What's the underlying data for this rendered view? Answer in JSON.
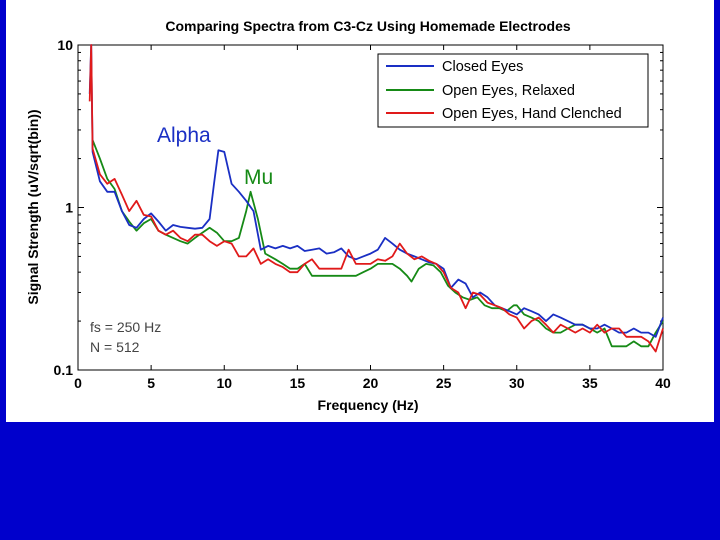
{
  "colors": {
    "slide_bg": "#0000cc",
    "panel_bg": "#ffffff",
    "closed_eyes": "#1a2fc4",
    "open_relaxed": "#168a16",
    "open_clenched": "#e01a1a"
  },
  "chart_data": {
    "type": "line",
    "title": "Comparing Spectra from C3-Cz Using Homemade Electrodes",
    "xlabel": "Frequency (Hz)",
    "ylabel": "Signal Strength (uV/sqrt(bin))",
    "xlim": [
      0,
      40
    ],
    "ylim": [
      0.1,
      10
    ],
    "yscale": "log",
    "grid": false,
    "legend_position": "top-right",
    "x_ticks": [
      {
        "v": 0,
        "label": "0"
      },
      {
        "v": 5,
        "label": "5"
      },
      {
        "v": 10,
        "label": "10"
      },
      {
        "v": 15,
        "label": "15"
      },
      {
        "v": 20,
        "label": "20"
      },
      {
        "v": 25,
        "label": "25"
      },
      {
        "v": 30,
        "label": "30"
      },
      {
        "v": 35,
        "label": "35"
      },
      {
        "v": 40,
        "label": "40"
      }
    ],
    "y_ticks": [
      {
        "v": 0.1,
        "label": "0.1"
      },
      {
        "v": 1,
        "label": "1"
      },
      {
        "v": 10,
        "label": "10"
      }
    ],
    "series": [
      {
        "name": "Closed Eyes",
        "color": "#1a2fc4",
        "points": [
          [
            0.8,
            5.0
          ],
          [
            0.9,
            10.0
          ],
          [
            1.0,
            2.2
          ],
          [
            1.5,
            1.45
          ],
          [
            2.0,
            1.25
          ],
          [
            2.5,
            1.25
          ],
          [
            3.0,
            0.95
          ],
          [
            3.5,
            0.78
          ],
          [
            4.0,
            0.75
          ],
          [
            4.5,
            0.85
          ],
          [
            5.0,
            0.92
          ],
          [
            5.5,
            0.82
          ],
          [
            6.0,
            0.72
          ],
          [
            6.5,
            0.78
          ],
          [
            7.0,
            0.76
          ],
          [
            7.5,
            0.75
          ],
          [
            8.0,
            0.74
          ],
          [
            8.5,
            0.75
          ],
          [
            9.0,
            0.85
          ],
          [
            9.3,
            1.4
          ],
          [
            9.6,
            2.25
          ],
          [
            10.0,
            2.2
          ],
          [
            10.5,
            1.4
          ],
          [
            11.0,
            1.25
          ],
          [
            11.5,
            1.1
          ],
          [
            12.0,
            0.95
          ],
          [
            12.5,
            0.55
          ],
          [
            13.0,
            0.58
          ],
          [
            13.5,
            0.56
          ],
          [
            14.0,
            0.58
          ],
          [
            14.5,
            0.56
          ],
          [
            15.0,
            0.58
          ],
          [
            15.5,
            0.54
          ],
          [
            16.0,
            0.55
          ],
          [
            16.5,
            0.56
          ],
          [
            17.0,
            0.52
          ],
          [
            17.5,
            0.53
          ],
          [
            18.0,
            0.56
          ],
          [
            18.5,
            0.5
          ],
          [
            19.0,
            0.48
          ],
          [
            19.5,
            0.5
          ],
          [
            20.0,
            0.52
          ],
          [
            20.5,
            0.55
          ],
          [
            21.0,
            0.65
          ],
          [
            21.5,
            0.6
          ],
          [
            22.0,
            0.55
          ],
          [
            22.5,
            0.52
          ],
          [
            23.0,
            0.5
          ],
          [
            23.5,
            0.48
          ],
          [
            24.0,
            0.46
          ],
          [
            24.5,
            0.45
          ],
          [
            25.0,
            0.42
          ],
          [
            25.5,
            0.32
          ],
          [
            26.0,
            0.36
          ],
          [
            26.5,
            0.34
          ],
          [
            27.0,
            0.28
          ],
          [
            27.5,
            0.3
          ],
          [
            28.0,
            0.28
          ],
          [
            28.5,
            0.25
          ],
          [
            29.0,
            0.24
          ],
          [
            29.5,
            0.23
          ],
          [
            30.0,
            0.22
          ],
          [
            30.5,
            0.24
          ],
          [
            31.0,
            0.23
          ],
          [
            31.5,
            0.22
          ],
          [
            32.0,
            0.2
          ],
          [
            32.5,
            0.22
          ],
          [
            33.0,
            0.21
          ],
          [
            33.5,
            0.2
          ],
          [
            34.0,
            0.19
          ],
          [
            34.5,
            0.19
          ],
          [
            35.0,
            0.18
          ],
          [
            35.5,
            0.18
          ],
          [
            36.0,
            0.19
          ],
          [
            36.5,
            0.18
          ],
          [
            37.0,
            0.17
          ],
          [
            37.5,
            0.17
          ],
          [
            38.0,
            0.18
          ],
          [
            38.5,
            0.17
          ],
          [
            39.0,
            0.17
          ],
          [
            39.5,
            0.16
          ],
          [
            40.0,
            0.21
          ]
        ]
      },
      {
        "name": "Open Eyes, Relaxed",
        "color": "#168a16",
        "points": [
          [
            1.0,
            2.6
          ],
          [
            1.5,
            2.0
          ],
          [
            2.0,
            1.5
          ],
          [
            2.5,
            1.3
          ],
          [
            3.0,
            0.95
          ],
          [
            3.5,
            0.82
          ],
          [
            4.0,
            0.72
          ],
          [
            4.5,
            0.8
          ],
          [
            5.0,
            0.85
          ],
          [
            5.5,
            0.72
          ],
          [
            6.0,
            0.68
          ],
          [
            6.5,
            0.65
          ],
          [
            7.0,
            0.62
          ],
          [
            7.5,
            0.6
          ],
          [
            8.0,
            0.65
          ],
          [
            8.5,
            0.7
          ],
          [
            9.0,
            0.75
          ],
          [
            9.5,
            0.7
          ],
          [
            10.0,
            0.62
          ],
          [
            10.5,
            0.62
          ],
          [
            11.0,
            0.65
          ],
          [
            11.5,
            0.95
          ],
          [
            11.8,
            1.25
          ],
          [
            12.3,
            0.85
          ],
          [
            12.8,
            0.52
          ],
          [
            13.5,
            0.48
          ],
          [
            14.0,
            0.45
          ],
          [
            14.5,
            0.42
          ],
          [
            15.0,
            0.42
          ],
          [
            15.5,
            0.45
          ],
          [
            16.0,
            0.38
          ],
          [
            16.5,
            0.38
          ],
          [
            17.0,
            0.38
          ],
          [
            17.5,
            0.38
          ],
          [
            18.0,
            0.38
          ],
          [
            18.5,
            0.38
          ],
          [
            19.0,
            0.38
          ],
          [
            19.5,
            0.4
          ],
          [
            20.0,
            0.42
          ],
          [
            20.5,
            0.45
          ],
          [
            21.0,
            0.45
          ],
          [
            21.5,
            0.45
          ],
          [
            22.0,
            0.42
          ],
          [
            22.5,
            0.38
          ],
          [
            22.8,
            0.35
          ],
          [
            23.3,
            0.42
          ],
          [
            23.8,
            0.45
          ],
          [
            24.3,
            0.44
          ],
          [
            24.8,
            0.4
          ],
          [
            25.3,
            0.33
          ],
          [
            25.8,
            0.3
          ],
          [
            26.3,
            0.28
          ],
          [
            26.8,
            0.27
          ],
          [
            27.3,
            0.28
          ],
          [
            27.8,
            0.25
          ],
          [
            28.3,
            0.24
          ],
          [
            28.8,
            0.24
          ],
          [
            29.3,
            0.23
          ],
          [
            29.8,
            0.25
          ],
          [
            30.0,
            0.25
          ],
          [
            30.5,
            0.22
          ],
          [
            31.0,
            0.21
          ],
          [
            31.5,
            0.2
          ],
          [
            32.0,
            0.18
          ],
          [
            32.5,
            0.17
          ],
          [
            33.0,
            0.17
          ],
          [
            33.5,
            0.18
          ],
          [
            34.0,
            0.19
          ],
          [
            34.5,
            0.19
          ],
          [
            35.0,
            0.18
          ],
          [
            35.5,
            0.17
          ],
          [
            36.0,
            0.18
          ],
          [
            36.5,
            0.14
          ],
          [
            37.0,
            0.14
          ],
          [
            37.5,
            0.14
          ],
          [
            38.0,
            0.15
          ],
          [
            38.5,
            0.14
          ],
          [
            39.0,
            0.14
          ],
          [
            39.5,
            0.17
          ],
          [
            40.0,
            0.2
          ]
        ]
      },
      {
        "name": "Open Eyes, Hand Clenched",
        "color": "#e01a1a",
        "points": [
          [
            0.8,
            4.5
          ],
          [
            0.9,
            10.0
          ],
          [
            1.0,
            2.3
          ],
          [
            1.5,
            1.6
          ],
          [
            2.0,
            1.4
          ],
          [
            2.5,
            1.5
          ],
          [
            3.0,
            1.2
          ],
          [
            3.5,
            0.95
          ],
          [
            4.0,
            1.1
          ],
          [
            4.5,
            0.9
          ],
          [
            5.0,
            0.88
          ],
          [
            5.5,
            0.72
          ],
          [
            6.0,
            0.68
          ],
          [
            6.5,
            0.72
          ],
          [
            7.0,
            0.65
          ],
          [
            7.5,
            0.62
          ],
          [
            8.0,
            0.68
          ],
          [
            8.5,
            0.68
          ],
          [
            9.0,
            0.62
          ],
          [
            9.5,
            0.58
          ],
          [
            10.0,
            0.62
          ],
          [
            10.5,
            0.6
          ],
          [
            11.0,
            0.5
          ],
          [
            11.5,
            0.5
          ],
          [
            12.0,
            0.56
          ],
          [
            12.5,
            0.45
          ],
          [
            13.0,
            0.48
          ],
          [
            13.5,
            0.45
          ],
          [
            14.0,
            0.43
          ],
          [
            14.5,
            0.4
          ],
          [
            15.0,
            0.4
          ],
          [
            15.5,
            0.45
          ],
          [
            16.0,
            0.48
          ],
          [
            16.5,
            0.42
          ],
          [
            17.0,
            0.42
          ],
          [
            17.5,
            0.42
          ],
          [
            18.0,
            0.42
          ],
          [
            18.5,
            0.55
          ],
          [
            19.0,
            0.45
          ],
          [
            19.5,
            0.45
          ],
          [
            20.0,
            0.45
          ],
          [
            20.5,
            0.48
          ],
          [
            21.0,
            0.47
          ],
          [
            21.5,
            0.5
          ],
          [
            22.0,
            0.6
          ],
          [
            22.5,
            0.52
          ],
          [
            23.0,
            0.48
          ],
          [
            23.5,
            0.5
          ],
          [
            24.0,
            0.47
          ],
          [
            24.5,
            0.45
          ],
          [
            25.0,
            0.4
          ],
          [
            25.5,
            0.32
          ],
          [
            26.0,
            0.3
          ],
          [
            26.5,
            0.24
          ],
          [
            27.0,
            0.3
          ],
          [
            27.5,
            0.29
          ],
          [
            28.0,
            0.26
          ],
          [
            28.5,
            0.25
          ],
          [
            29.0,
            0.24
          ],
          [
            29.5,
            0.22
          ],
          [
            30.0,
            0.21
          ],
          [
            30.5,
            0.18
          ],
          [
            31.0,
            0.2
          ],
          [
            31.5,
            0.21
          ],
          [
            32.0,
            0.19
          ],
          [
            32.5,
            0.17
          ],
          [
            33.0,
            0.19
          ],
          [
            33.5,
            0.18
          ],
          [
            34.0,
            0.17
          ],
          [
            34.5,
            0.18
          ],
          [
            35.0,
            0.17
          ],
          [
            35.5,
            0.19
          ],
          [
            36.0,
            0.17
          ],
          [
            36.5,
            0.18
          ],
          [
            37.0,
            0.18
          ],
          [
            37.5,
            0.16
          ],
          [
            38.0,
            0.16
          ],
          [
            38.5,
            0.16
          ],
          [
            39.0,
            0.15
          ],
          [
            39.5,
            0.13
          ],
          [
            40.0,
            0.18
          ]
        ]
      }
    ],
    "annotations": {
      "alpha": {
        "text": "Alpha",
        "color": "#1a2fc4"
      },
      "mu": {
        "text": "Mu",
        "color": "#168a16"
      },
      "fs": {
        "text": "fs = 250 Hz"
      },
      "n": {
        "text": "N = 512"
      }
    }
  }
}
